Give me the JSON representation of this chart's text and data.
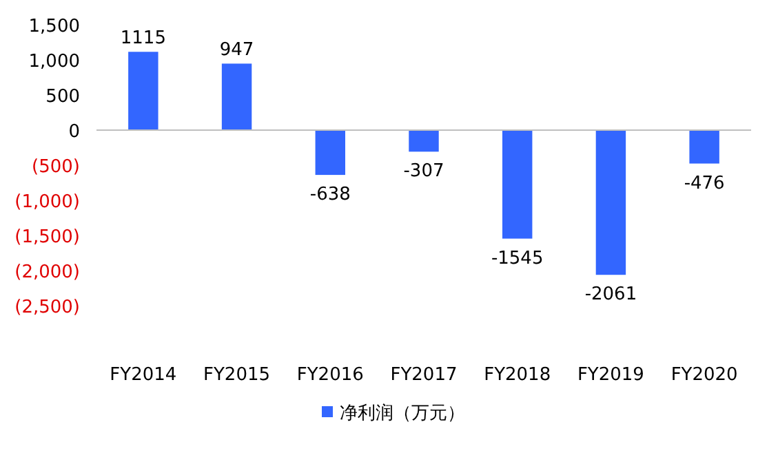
{
  "chart_data": {
    "type": "bar",
    "categories": [
      "FY2014",
      "FY2015",
      "FY2016",
      "FY2017",
      "FY2018",
      "FY2019",
      "FY2020"
    ],
    "series": [
      {
        "name": "净利润（万元）",
        "color": "#3366ff",
        "values": [
          1115,
          947,
          -638,
          -307,
          -1545,
          -2061,
          -476
        ]
      }
    ],
    "ylim": [
      -2500,
      1500
    ],
    "yticks": [
      {
        "value": -2500,
        "label": "(2,500)"
      },
      {
        "value": -2000,
        "label": "(2,000)"
      },
      {
        "value": -1500,
        "label": "(1,500)"
      },
      {
        "value": -1000,
        "label": "(1,000)"
      },
      {
        "value": -500,
        "label": "(500)"
      },
      0,
      500,
      {
        "value": 1000,
        "label": "1,000"
      },
      {
        "value": 1500,
        "label": "1,500"
      }
    ],
    "data_labels": true,
    "legend": "bottom"
  }
}
